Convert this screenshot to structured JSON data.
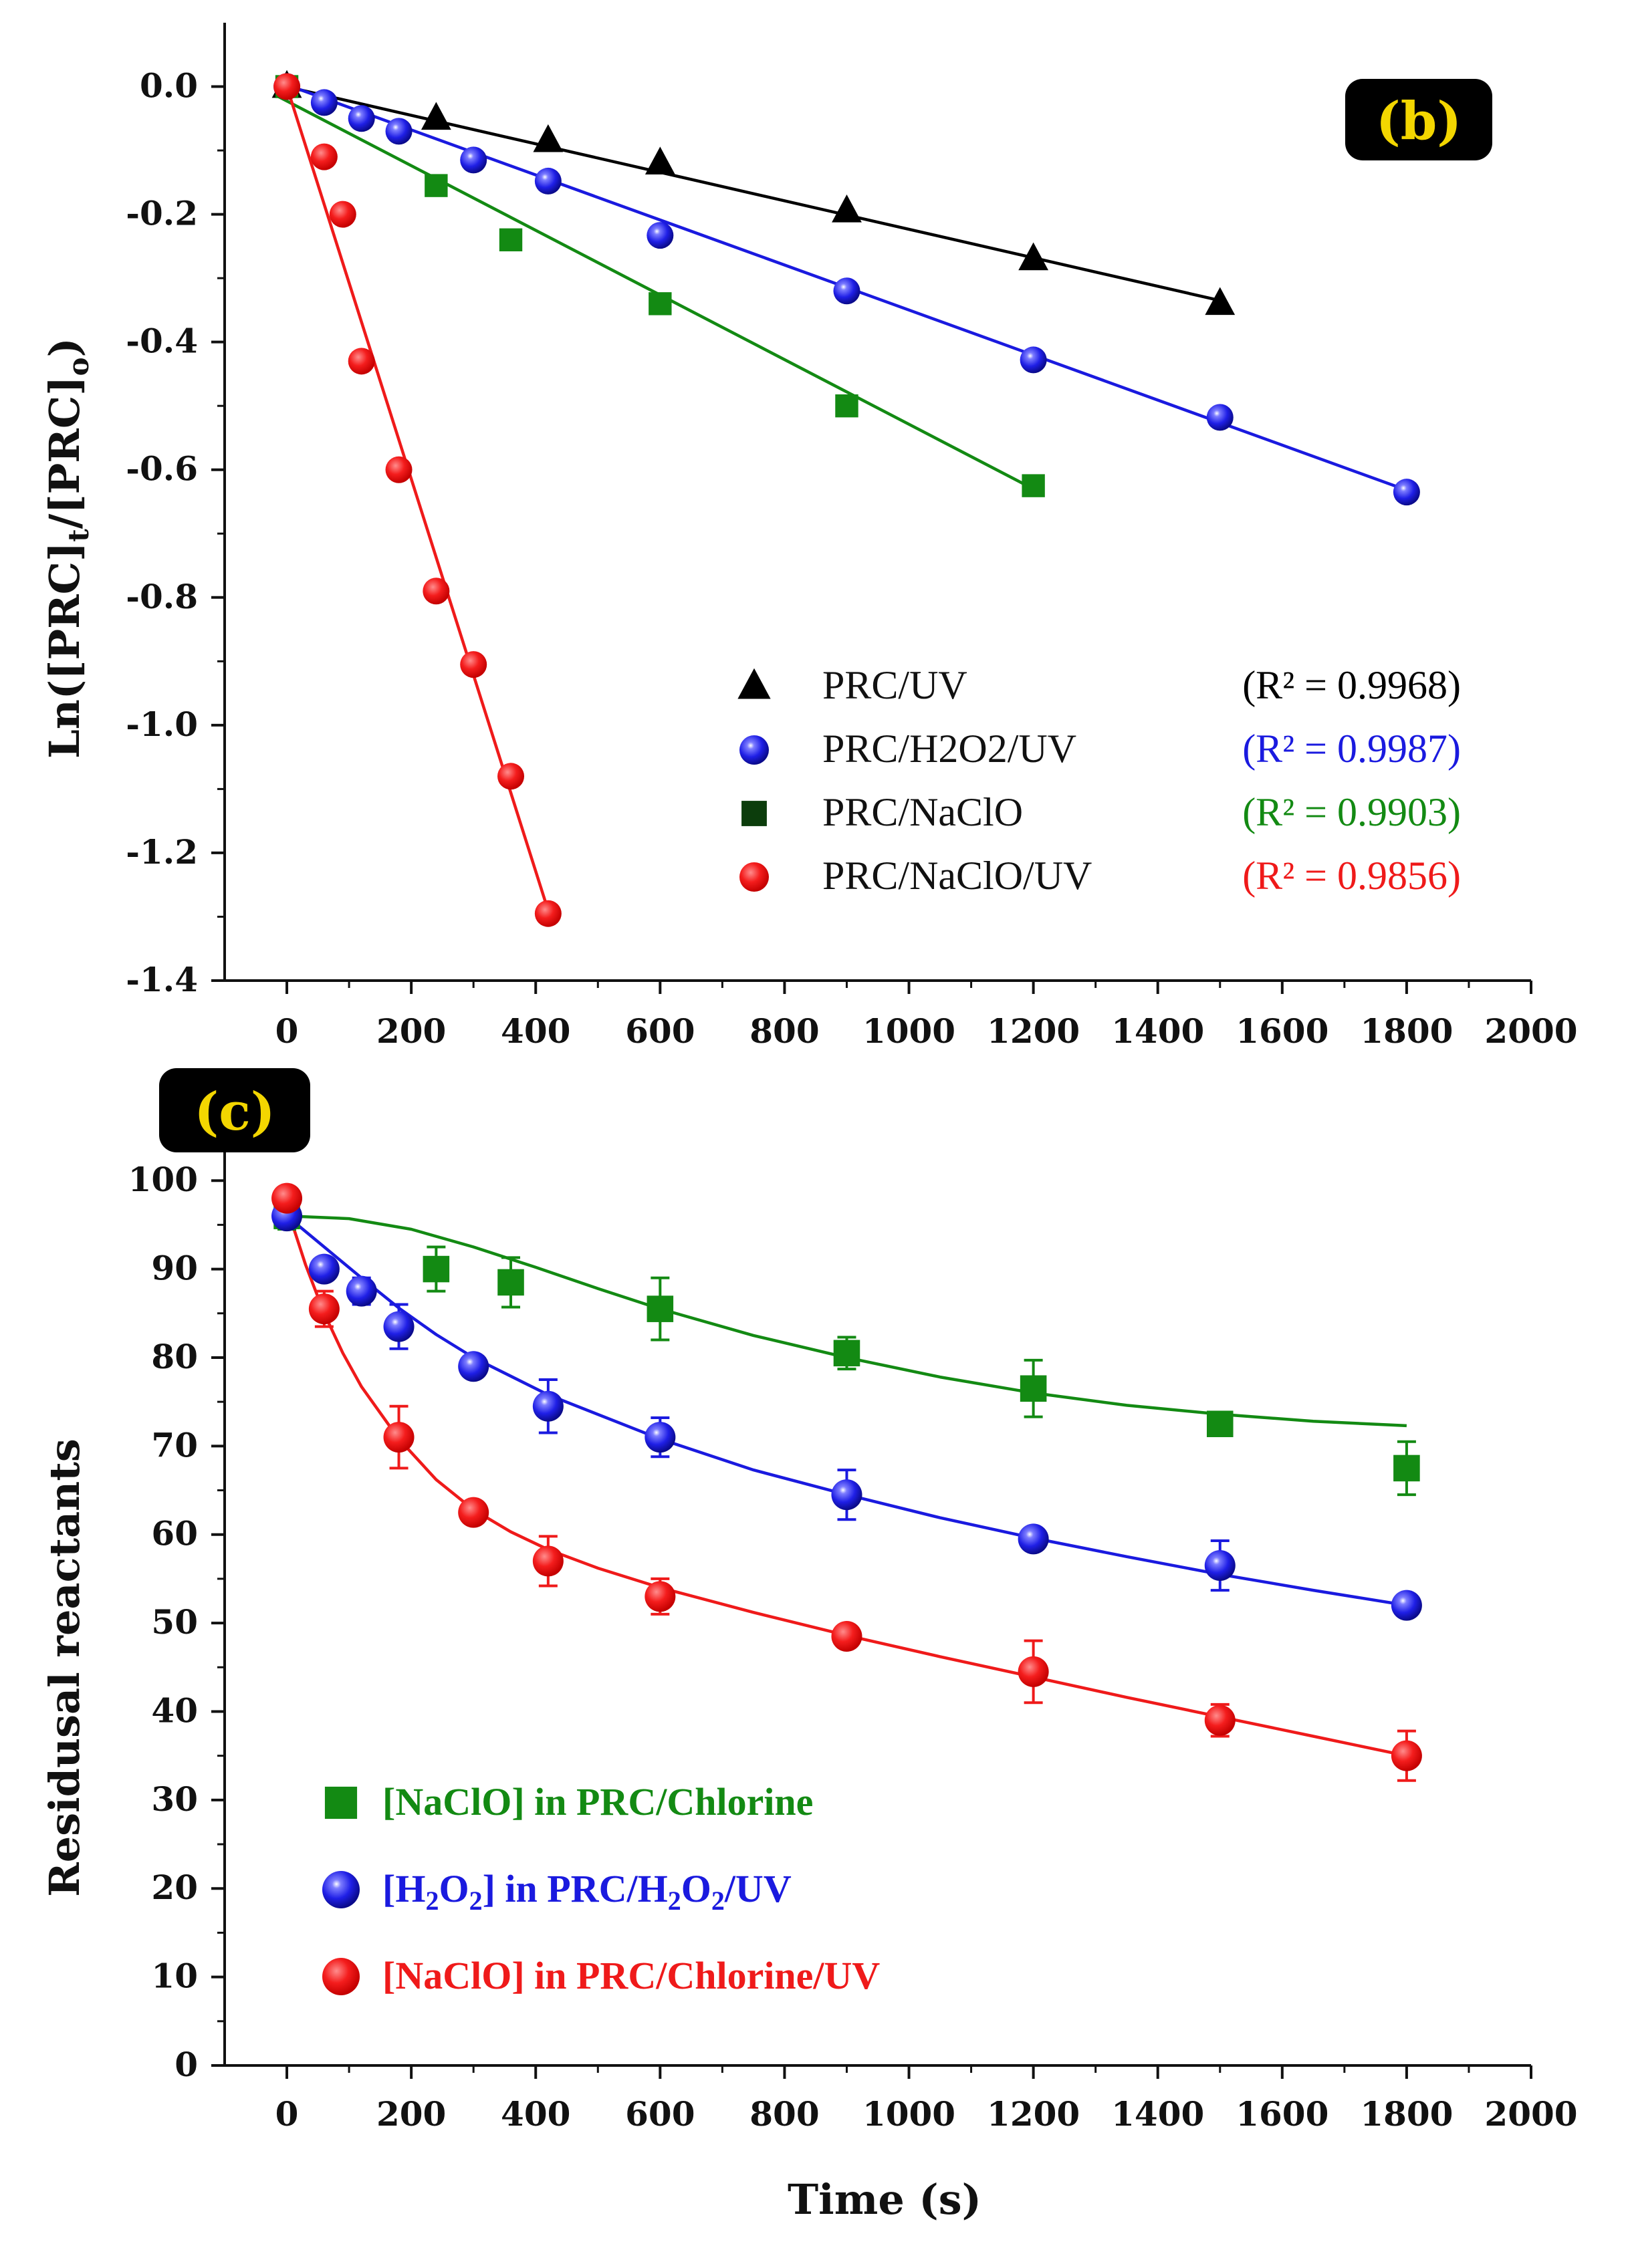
{
  "chart_data": [
    {
      "type": "scatter",
      "panel": "(b)",
      "title": "",
      "xlabel": "",
      "ylabel": "Ln([PRC]t/[PRC]o)",
      "xlim": [
        -100,
        2000
      ],
      "ylim": [
        -1.4,
        0.1
      ],
      "xticks": [
        0,
        200,
        400,
        600,
        800,
        1000,
        1200,
        1400,
        1600,
        1800,
        2000
      ],
      "xtick_labels": [
        "0",
        "200",
        "400",
        "600",
        "800",
        "1000",
        "1200",
        "1400",
        "1600",
        "1800",
        "2000"
      ],
      "yticks": [
        0.0,
        -0.2,
        -0.4,
        -0.6,
        -0.8,
        -1.0,
        -1.2,
        -1.4
      ],
      "ytick_labels": [
        "0.0",
        "-0.2",
        "-0.4",
        "-0.6",
        "-0.8",
        "-1.0",
        "-1.2",
        "-1.4"
      ],
      "legend_position": "lower-right",
      "series": [
        {
          "name": "PRC/UV",
          "r2": "(R² = 0.9968)",
          "color": "#000000",
          "marker": "triangle",
          "x": [
            0,
            240,
            420,
            600,
            900,
            1200,
            1500
          ],
          "y": [
            0.0,
            -0.05,
            -0.085,
            -0.12,
            -0.195,
            -0.27,
            -0.34
          ],
          "fit": [
            [
              -15,
              0.003
            ],
            [
              1500,
              -0.335
            ]
          ]
        },
        {
          "name": "PRC/H2O2/UV",
          "r2": "(R² = 0.9987)",
          "color": "#1a1adf",
          "marker": "sphere",
          "x": [
            0,
            60,
            120,
            180,
            300,
            420,
            600,
            900,
            1200,
            1500,
            1800
          ],
          "y": [
            0.0,
            -0.025,
            -0.05,
            -0.07,
            -0.115,
            -0.148,
            -0.233,
            -0.32,
            -0.428,
            -0.518,
            -0.635
          ],
          "fit": [
            [
              -15,
              0.008
            ],
            [
              1800,
              -0.632
            ]
          ]
        },
        {
          "name": "PRC/NaClO",
          "r2": "(R² = 0.9903)",
          "color": "#138a13",
          "marker": "square",
          "x": [
            0,
            240,
            360,
            600,
            900,
            1200
          ],
          "y": [
            0.0,
            -0.155,
            -0.24,
            -0.34,
            -0.5,
            -0.625
          ],
          "fit": [
            [
              -15,
              -0.015
            ],
            [
              1200,
              -0.63
            ]
          ]
        },
        {
          "name": "PRC/NaClO/UV",
          "r2": "(R² = 0.9856)",
          "color": "#ef1a1a",
          "marker": "sphere",
          "x": [
            0,
            60,
            90,
            120,
            180,
            240,
            300,
            360,
            420
          ],
          "y": [
            0.0,
            -0.11,
            -0.2,
            -0.43,
            -0.6,
            -0.79,
            -0.905,
            -1.08,
            -1.295
          ],
          "fit": [
            [
              0,
              0.0
            ],
            [
              420,
              -1.29
            ]
          ]
        }
      ]
    },
    {
      "type": "scatter",
      "panel": "(c)",
      "title": "",
      "xlabel": "Time (s)",
      "ylabel": "Residusal reactants",
      "xlim": [
        -100,
        2000
      ],
      "ylim": [
        0,
        105
      ],
      "xticks": [
        0,
        200,
        400,
        600,
        800,
        1000,
        1200,
        1400,
        1600,
        1800,
        2000
      ],
      "xtick_labels": [
        "0",
        "200",
        "400",
        "600",
        "800",
        "1000",
        "1200",
        "1400",
        "1600",
        "1800",
        "2000"
      ],
      "yticks": [
        0,
        10,
        20,
        30,
        40,
        50,
        60,
        70,
        80,
        90,
        100
      ],
      "ytick_labels": [
        "0",
        "10",
        "20",
        "30",
        "40",
        "50",
        "60",
        "70",
        "80",
        "90",
        "100"
      ],
      "legend_position": "lower-left",
      "series": [
        {
          "name_parts": [
            {
              "t": "[NaClO] in PRC/Chlorine"
            }
          ],
          "color": "#138a13",
          "marker": "square",
          "x": [
            0,
            240,
            360,
            600,
            900,
            1200,
            1500,
            1800
          ],
          "y": [
            96,
            90,
            88.5,
            85.5,
            80.5,
            76.5,
            72.5,
            67.5
          ],
          "err": [
            1.5,
            2.5,
            2.8,
            3.5,
            1.8,
            3.2,
            1.0,
            3.0
          ],
          "fit": [
            [
              0,
              96
            ],
            [
              100,
              95.7
            ],
            [
              200,
              94.5
            ],
            [
              300,
              92.5
            ],
            [
              400,
              90.2
            ],
            [
              500,
              87.8
            ],
            [
              600,
              85.5
            ],
            [
              750,
              82.5
            ],
            [
              900,
              80
            ],
            [
              1050,
              77.8
            ],
            [
              1200,
              76
            ],
            [
              1350,
              74.6
            ],
            [
              1500,
              73.6
            ],
            [
              1650,
              72.8
            ],
            [
              1800,
              72.3
            ]
          ]
        },
        {
          "name_parts": [
            {
              "t": "[H"
            },
            {
              "t": "2",
              "sub": true
            },
            {
              "t": "O"
            },
            {
              "t": "2",
              "sub": true
            },
            {
              "t": "] in PRC/H"
            },
            {
              "t": "2",
              "sub": true
            },
            {
              "t": "O"
            },
            {
              "t": "2",
              "sub": true
            },
            {
              "t": "/UV"
            }
          ],
          "color": "#1a1adf",
          "marker": "sphere",
          "x": [
            0,
            60,
            120,
            180,
            300,
            420,
            600,
            900,
            1200,
            1500,
            1800
          ],
          "y": [
            96,
            90,
            87.5,
            83.5,
            79,
            74.5,
            71,
            64.5,
            59.5,
            56.5,
            52
          ],
          "err": [
            1.0,
            1.2,
            1.5,
            2.5,
            1.0,
            3.0,
            2.2,
            2.8,
            1.2,
            2.8,
            1.0
          ],
          "fit": [
            [
              0,
              96
            ],
            [
              60,
              92.5
            ],
            [
              120,
              89
            ],
            [
              180,
              85.6
            ],
            [
              240,
              82.6
            ],
            [
              300,
              80
            ],
            [
              420,
              75.8
            ],
            [
              600,
              70.8
            ],
            [
              750,
              67.3
            ],
            [
              900,
              64.5
            ],
            [
              1050,
              61.9
            ],
            [
              1200,
              59.6
            ],
            [
              1350,
              57.5
            ],
            [
              1500,
              55.5
            ],
            [
              1650,
              53.7
            ],
            [
              1800,
              52
            ]
          ]
        },
        {
          "name_parts": [
            {
              "t": "[NaClO] in PRC/Chlorine/UV"
            }
          ],
          "color": "#ef1a1a",
          "marker": "sphere",
          "x": [
            0,
            60,
            180,
            300,
            420,
            600,
            900,
            1200,
            1500,
            1800
          ],
          "y": [
            98,
            85.5,
            71,
            62.5,
            57,
            53,
            48.5,
            44.5,
            39,
            35
          ],
          "err": [
            0.8,
            2.0,
            3.5,
            1.0,
            2.8,
            2.0,
            1.0,
            3.5,
            1.8,
            2.8
          ],
          "fit": [
            [
              0,
              97
            ],
            [
              30,
              90.5
            ],
            [
              60,
              85
            ],
            [
              90,
              80.5
            ],
            [
              120,
              76.7
            ],
            [
              180,
              70.8
            ],
            [
              240,
              66.2
            ],
            [
              300,
              62.8
            ],
            [
              360,
              60.3
            ],
            [
              420,
              58.3
            ],
            [
              500,
              56.2
            ],
            [
              600,
              54
            ],
            [
              750,
              51.2
            ],
            [
              900,
              48.6
            ],
            [
              1050,
              46.2
            ],
            [
              1200,
              43.9
            ],
            [
              1350,
              41.6
            ],
            [
              1500,
              39.4
            ],
            [
              1650,
              37.2
            ],
            [
              1800,
              35
            ]
          ]
        }
      ]
    }
  ],
  "badges": {
    "b": "(b)",
    "c": "(c)"
  }
}
